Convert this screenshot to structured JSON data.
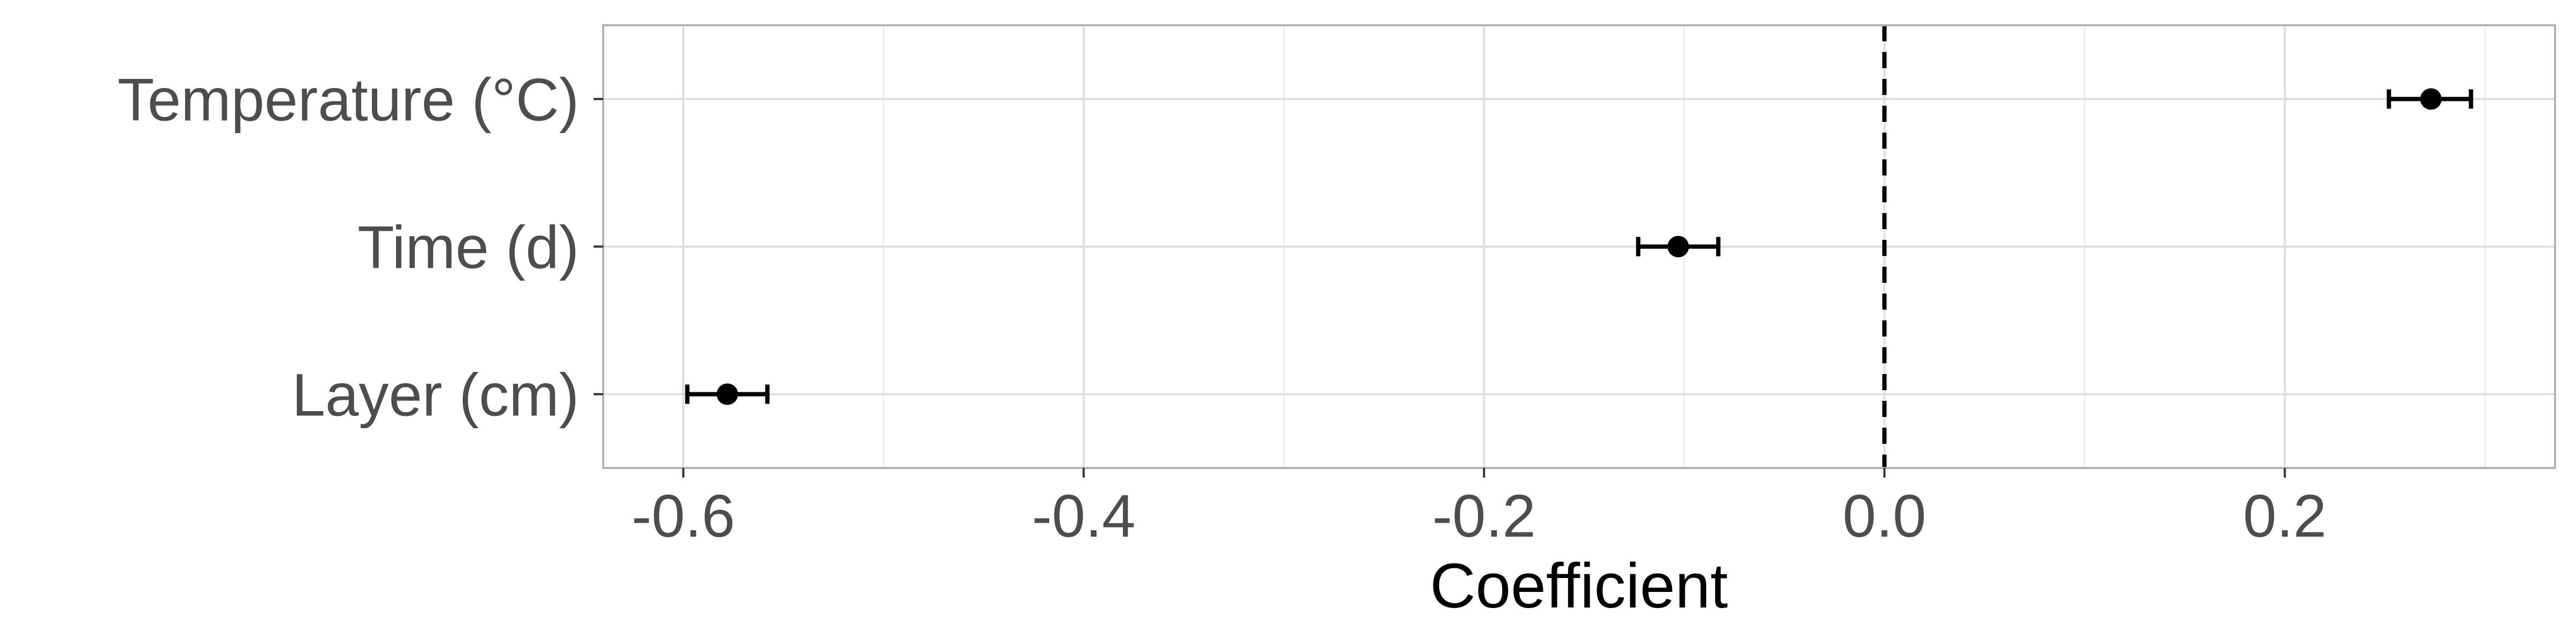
{
  "chart_data": {
    "type": "scatter",
    "title": "",
    "xlabel": "Coefficient",
    "ylabel": "",
    "xlim": [
      -0.64,
      0.335
    ],
    "x_ticks": [
      -0.6,
      -0.4,
      -0.2,
      0.0,
      0.2
    ],
    "x_tick_labels": [
      "-0.6",
      "-0.4",
      "-0.2",
      "0.0",
      "0.2"
    ],
    "categories": [
      "Temperature (°C)",
      "Time (d)",
      "Layer (cm)"
    ],
    "points": [
      {
        "category": "Temperature (°C)",
        "estimate": 0.273,
        "lower": 0.252,
        "upper": 0.293
      },
      {
        "category": "Time (d)",
        "estimate": -0.103,
        "lower": -0.123,
        "upper": -0.083
      },
      {
        "category": "Layer (cm)",
        "estimate": -0.578,
        "lower": -0.598,
        "upper": -0.558
      }
    ],
    "reference_line": {
      "x": 0.0,
      "style": "dashed"
    },
    "grid": true,
    "legend": "none"
  }
}
